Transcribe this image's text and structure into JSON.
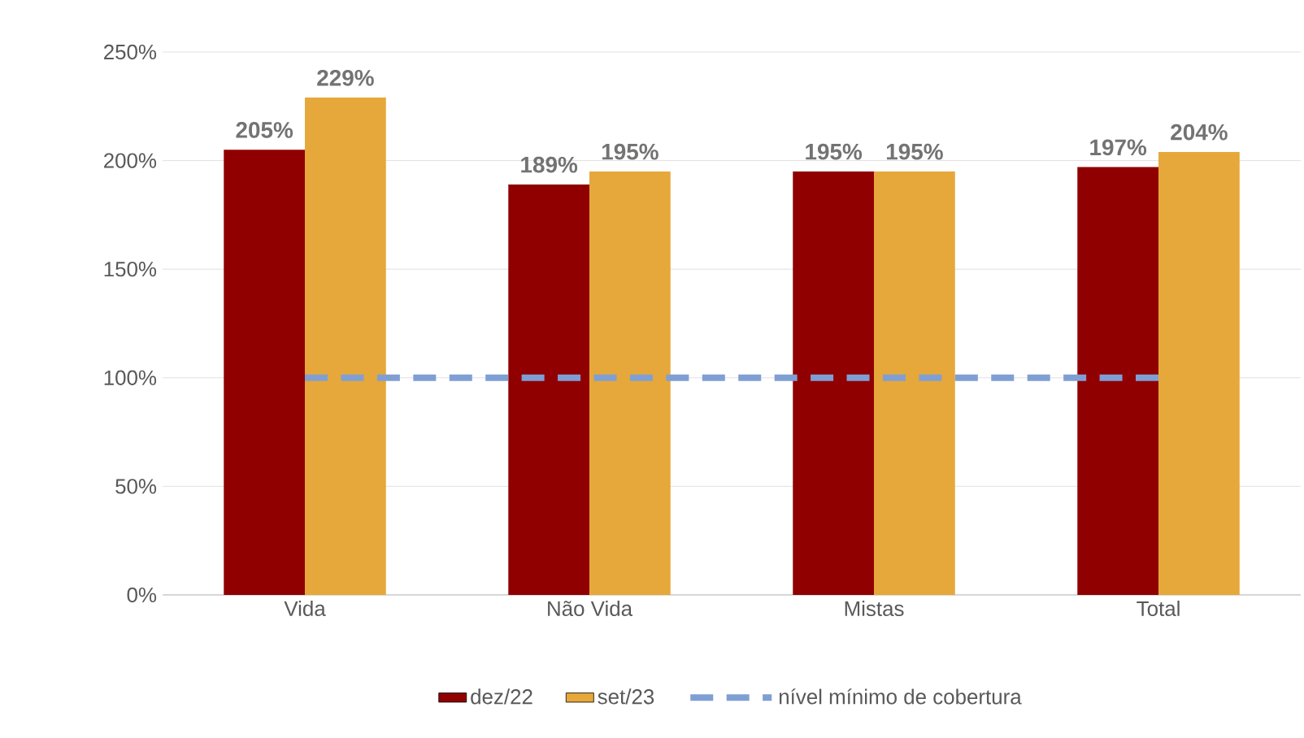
{
  "chart_data": {
    "type": "bar",
    "categories": [
      "Vida",
      "Não Vida",
      "Mistas",
      "Total"
    ],
    "series": [
      {
        "name": "dez/22",
        "color": "#900000",
        "values": [
          205,
          189,
          195,
          197
        ],
        "value_labels": [
          "205%",
          "189%",
          "195%",
          "197%"
        ]
      },
      {
        "name": "set/23",
        "color": "#e6a83a",
        "values": [
          229,
          195,
          195,
          204
        ],
        "value_labels": [
          "229%",
          "195%",
          "195%",
          "204%"
        ]
      },
      {
        "name": "nível mínimo de cobertura",
        "type": "line",
        "color": "#7f9fd4",
        "line_style": "dashed",
        "marker": "none",
        "values": [
          100,
          100,
          100,
          100
        ]
      }
    ],
    "ylim": [
      0,
      250
    ],
    "yticks": [
      {
        "value": 0,
        "label": "0%"
      },
      {
        "value": 50,
        "label": "50%"
      },
      {
        "value": 100,
        "label": "100%"
      },
      {
        "value": 150,
        "label": "150%"
      },
      {
        "value": 200,
        "label": "200%"
      },
      {
        "value": 250,
        "label": "250%"
      }
    ],
    "grid": "y",
    "legend": "bottom"
  }
}
